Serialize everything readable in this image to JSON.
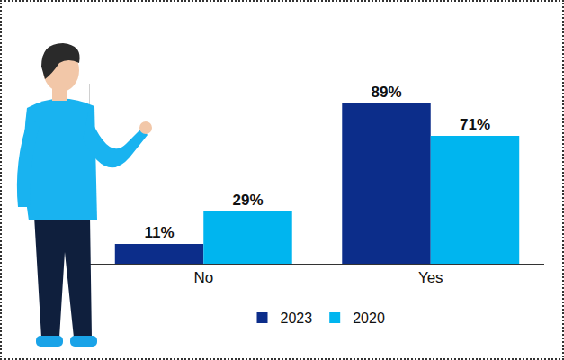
{
  "chart_data": {
    "type": "bar",
    "categories": [
      "No",
      "Yes"
    ],
    "series": [
      {
        "name": "2023",
        "color": "#0c2d8a",
        "values": [
          11,
          89
        ],
        "value_labels": [
          "11%",
          "89%"
        ]
      },
      {
        "name": "2020",
        "color": "#00b5ef",
        "values": [
          29,
          71
        ],
        "value_labels": [
          "29%",
          "71%"
        ]
      }
    ],
    "ylim": [
      0,
      100
    ],
    "data_labels": true,
    "tick_labels": "x",
    "legend": "bottom",
    "grid": false
  }
}
